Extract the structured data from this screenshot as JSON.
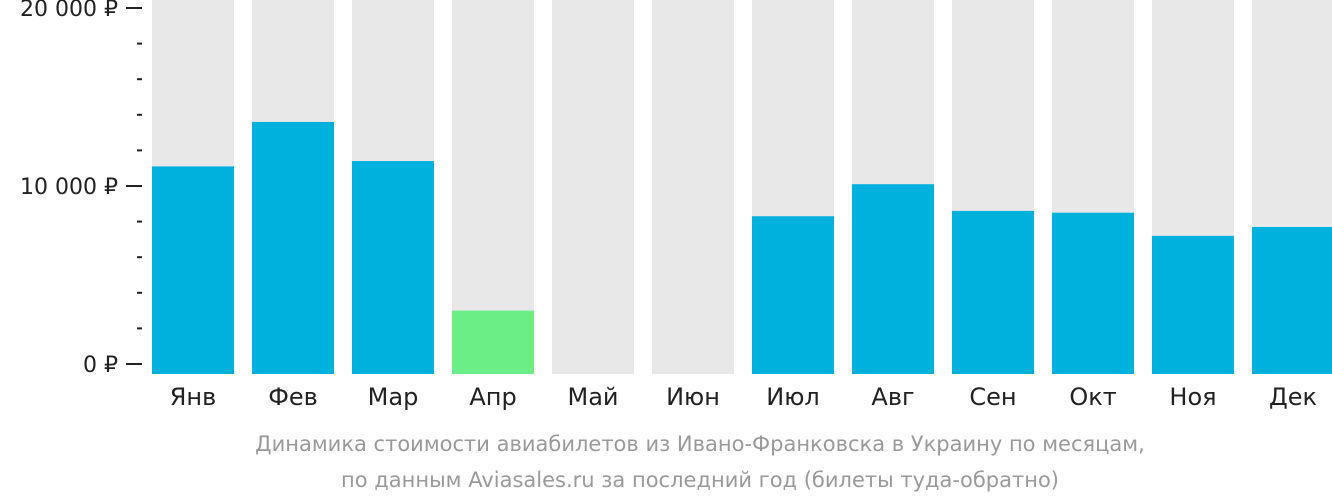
{
  "chart_data": {
    "type": "bar",
    "categories": [
      "Янв",
      "Фев",
      "Мар",
      "Апр",
      "Май",
      "Июн",
      "Июл",
      "Авг",
      "Сен",
      "Окт",
      "Ноя",
      "Дек"
    ],
    "values": [
      11100,
      13600,
      11400,
      3000,
      null,
      null,
      8300,
      10100,
      8600,
      8500,
      7200,
      7700
    ],
    "highlight_category": "Апр",
    "ylim": [
      0,
      21000
    ],
    "y_ticks": [
      {
        "value": 0,
        "label": "0 ₽"
      },
      {
        "value": 10000,
        "label": "10 000 ₽"
      },
      {
        "value": 20000,
        "label": "20 000 ₽"
      }
    ],
    "y_minor_step": 2000,
    "background_bars": true,
    "grid": false,
    "legend": "none",
    "colors": {
      "bar": "#00b0dd",
      "highlight": "#6bee85",
      "background_bar": "#e8e8e8",
      "axis": "#222222"
    }
  },
  "caption": {
    "line1": "Динамика стоимости авиабилетов из Ивано-Франковска в Украину по месяцам,",
    "line2": "по данным Aviasales.ru за последний год (билеты туда-обратно)"
  }
}
